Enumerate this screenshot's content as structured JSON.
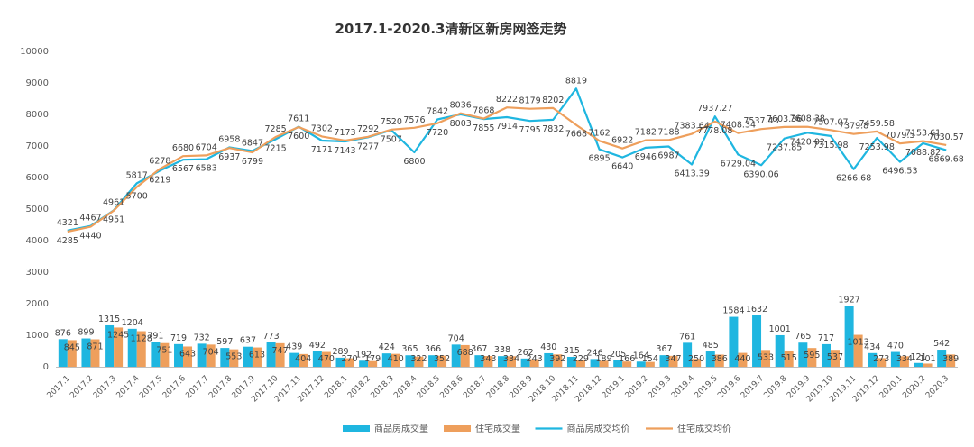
{
  "chart_data": {
    "type": "bar+line",
    "title": "2017.1-2020.3清新区新房网签走势",
    "categories": [
      "2017.1",
      "2017.2",
      "2017.3",
      "2017.4",
      "2017.5",
      "2017.6",
      "2017.7",
      "2017.8",
      "2017.9",
      "2017.10",
      "2017.11",
      "2017.12",
      "2018.1",
      "2018.2",
      "2018.3",
      "2018.4",
      "2018.5",
      "2018.6",
      "2018.7",
      "2018.8",
      "2018.9",
      "2018.10",
      "2018.11",
      "2018.12",
      "2019.1",
      "2019.2",
      "2019.3",
      "2019.4",
      "2019.5",
      "2019.6",
      "2019.7",
      "2019.8",
      "2019.9",
      "2019.10",
      "2019.11",
      "2019.12",
      "2020.1",
      "2020.2",
      "2020.3"
    ],
    "series": [
      {
        "name": "商品房成交量",
        "kind": "bar",
        "color": "#1fb6e0",
        "values": [
          876,
          899,
          1315,
          1204,
          791,
          719,
          732,
          597,
          637,
          773,
          439,
          492,
          289,
          192,
          424,
          365,
          366,
          704,
          367,
          338,
          262,
          430,
          315,
          246,
          205,
          164,
          367,
          761,
          485,
          1584,
          1632,
          1001,
          765,
          717,
          1927,
          434,
          470,
          121,
          542
        ]
      },
      {
        "name": "住宅成交量",
        "kind": "bar",
        "color": "#ee9f5c",
        "values": [
          845,
          871,
          1245,
          1128,
          751,
          643,
          704,
          553,
          613,
          747,
          404,
          470,
          270,
          179,
          410,
          322,
          352,
          688,
          343,
          334,
          243,
          392,
          229,
          189,
          166,
          154,
          347,
          250,
          386,
          440,
          533,
          515,
          595,
          537,
          1013,
          273,
          334,
          101,
          389
        ]
      },
      {
        "name": "商品房成交均价",
        "kind": "line",
        "color": "#1fb6e0",
        "values": [
          4321,
          4467,
          4961,
          5817,
          6219,
          6567,
          6583,
          6958,
          6847,
          7215,
          7611,
          7171,
          7143,
          7277,
          7507,
          6800,
          7842,
          8003,
          7855,
          7914,
          7795,
          7832,
          8819,
          6895,
          6640,
          6946,
          6987,
          6413.39,
          7937.27,
          6729.04,
          6390.06,
          7237.85,
          7420.02,
          7315.98,
          6266.68,
          7253.98,
          6496.53,
          7088.82,
          6869.68
        ]
      },
      {
        "name": "住宅成交均价",
        "kind": "line",
        "color": "#ee9f5c",
        "values": [
          4285,
          4440,
          4951,
          5700,
          6278,
          6680,
          6704,
          6937,
          6799,
          7285,
          7600,
          7302,
          7173,
          7292,
          7520,
          7576,
          7720,
          8036,
          7868,
          8222,
          8179,
          8202,
          7668,
          7162,
          6922,
          7182,
          7188,
          7383.64,
          7778.08,
          7408.34,
          7537.43,
          7603.36,
          7608.38,
          7507.07,
          7379.8,
          7459.58,
          7079.5,
          7153.61,
          7030.57
        ]
      }
    ],
    "y_left": {
      "min": 0,
      "max": 10000,
      "ticks": [
        0,
        1000,
        2000,
        3000,
        4000,
        5000,
        6000,
        7000,
        8000,
        9000,
        10000
      ]
    },
    "legend_position": "bottom",
    "grid": false
  }
}
